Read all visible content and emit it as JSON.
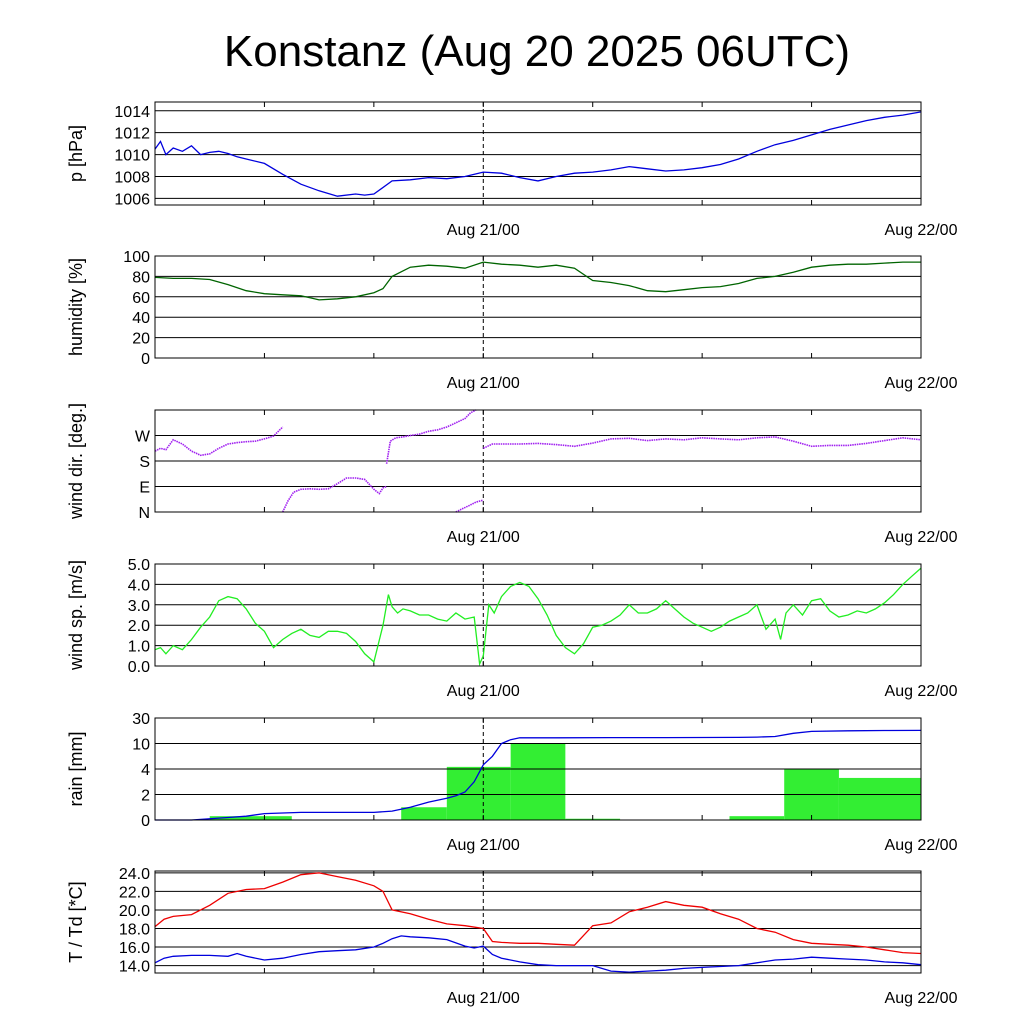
{
  "title": "Konstanz (Aug 20 2025 06UTC)",
  "colors": {
    "pressure": "#0000dd",
    "humidity": "#006400",
    "wind_dir": "#a020f0",
    "wind_speed": "#22ee22",
    "rain_bars": "#33ee33",
    "rain_cum": "#0000dd",
    "temperature": "#ee0000",
    "dewpoint": "#0000dd",
    "grid": "#000000"
  },
  "chart_data": [
    {
      "id": "pressure",
      "type": "line",
      "ylabel": "p [hPa]",
      "ylim": [
        1005.4,
        1014.8
      ],
      "yticks": [
        "1006",
        "1008",
        "1010",
        "1012",
        "1014"
      ],
      "ytick_values": [
        1006,
        1008,
        1010,
        1012,
        1014
      ],
      "xlim": [
        0,
        42
      ],
      "xticks": [
        {
          "x": 18,
          "label": "Aug 21/00"
        },
        {
          "x": 42,
          "label": "Aug 22/00"
        }
      ],
      "marker_line_x": 18,
      "series": [
        {
          "color_key": "pressure",
          "x": [
            0,
            0.3,
            0.6,
            1,
            1.5,
            2,
            2.5,
            3,
            3.5,
            4,
            4.5,
            5,
            6,
            7,
            8,
            9,
            10,
            11,
            11.5,
            12,
            13,
            14,
            15,
            16,
            17,
            18,
            19,
            20,
            21,
            22,
            23,
            24,
            25,
            26,
            27,
            28,
            29,
            30,
            31,
            32,
            33,
            34,
            35,
            36,
            37,
            38,
            39,
            40,
            41,
            42
          ],
          "y": [
            1010.5,
            1011.2,
            1010.0,
            1010.6,
            1010.3,
            1010.8,
            1010.0,
            1010.2,
            1010.3,
            1010.1,
            1009.8,
            1009.6,
            1009.2,
            1008.2,
            1007.3,
            1006.7,
            1006.2,
            1006.4,
            1006.3,
            1006.4,
            1007.6,
            1007.7,
            1007.9,
            1007.8,
            1008.0,
            1008.4,
            1008.3,
            1007.9,
            1007.6,
            1008.0,
            1008.3,
            1008.4,
            1008.6,
            1008.9,
            1008.7,
            1008.5,
            1008.6,
            1008.8,
            1009.1,
            1009.6,
            1010.3,
            1010.9,
            1011.3,
            1011.8,
            1012.3,
            1012.7,
            1013.1,
            1013.4,
            1013.6,
            1013.9
          ]
        }
      ]
    },
    {
      "id": "humidity",
      "type": "line",
      "ylabel": "humidity [%]",
      "ylim": [
        0,
        100
      ],
      "yticks": [
        "0",
        "20",
        "40",
        "60",
        "80",
        "100"
      ],
      "ytick_values": [
        0,
        20,
        40,
        60,
        80,
        100
      ],
      "xlim": [
        0,
        42
      ],
      "xticks": [
        {
          "x": 18,
          "label": "Aug 21/00"
        },
        {
          "x": 42,
          "label": "Aug 22/00"
        }
      ],
      "marker_line_x": 18,
      "series": [
        {
          "color_key": "humidity",
          "x": [
            0,
            1,
            2,
            3,
            4,
            5,
            6,
            7,
            8,
            8.5,
            9,
            10,
            11,
            12,
            12.5,
            13,
            14,
            15,
            16,
            17,
            18,
            19,
            20,
            21,
            22,
            23,
            24,
            25,
            26,
            27,
            28,
            29,
            30,
            31,
            32,
            33,
            34,
            35,
            36,
            37,
            38,
            39,
            40,
            41,
            42
          ],
          "y": [
            79,
            78,
            78,
            77,
            72,
            66,
            63,
            62,
            61,
            59,
            57,
            58,
            60,
            64,
            68,
            80,
            89,
            91,
            90,
            88,
            94,
            92,
            91,
            89,
            91,
            88,
            76,
            74,
            71,
            66,
            65,
            67,
            69,
            70,
            73,
            78,
            80,
            84,
            89,
            91,
            92,
            92,
            93,
            94,
            94
          ]
        }
      ]
    },
    {
      "id": "wind_direction",
      "type": "scatter",
      "ylabel": "wind dir. [deg.]",
      "ylim": [
        0,
        360
      ],
      "yticks": [
        "N",
        "E",
        "S",
        "W"
      ],
      "ytick_values": [
        0,
        90,
        180,
        270
      ],
      "xlim": [
        0,
        42
      ],
      "xticks": [
        {
          "x": 18,
          "label": "Aug 21/00"
        },
        {
          "x": 42,
          "label": "Aug 22/00"
        }
      ],
      "marker_line_x": 18,
      "series": [
        {
          "color_key": "wind_dir",
          "x": [
            0,
            0.3,
            0.6,
            1,
            1.5,
            2,
            2.5,
            3,
            3.5,
            4,
            4.5,
            5,
            5.5,
            6,
            6.5,
            7
          ],
          "y": [
            215,
            225,
            220,
            255,
            240,
            215,
            200,
            205,
            225,
            240,
            245,
            248,
            250,
            258,
            268,
            300
          ]
        },
        {
          "color_key": "wind_dir",
          "x": [
            7,
            7.3,
            7.6,
            8,
            8.5,
            9,
            9.5,
            10,
            10.5,
            11,
            11.5,
            12,
            12.3,
            12.5,
            12.7
          ],
          "y": [
            0,
            40,
            70,
            80,
            82,
            80,
            82,
            100,
            120,
            120,
            115,
            80,
            65,
            85,
            90
          ]
        },
        {
          "color_key": "wind_dir",
          "x": [
            12.7,
            12.9,
            13.2,
            13.6,
            14,
            14.5,
            15,
            15.5,
            16,
            16.5,
            17,
            17.3,
            17.6
          ],
          "y": [
            170,
            250,
            262,
            265,
            270,
            275,
            285,
            290,
            300,
            315,
            330,
            350,
            360
          ]
        },
        {
          "color_key": "wind_dir",
          "x": [
            16.5,
            16.8,
            17.2,
            17.6,
            18
          ],
          "y": [
            0,
            10,
            22,
            35,
            42
          ]
        },
        {
          "color_key": "wind_dir",
          "x": [
            18,
            18.5,
            19,
            20,
            21,
            22,
            23,
            24,
            25,
            26,
            27,
            28,
            29,
            30,
            31,
            32,
            33,
            34,
            35,
            36,
            37,
            38,
            39,
            40,
            41,
            42
          ],
          "y": [
            225,
            240,
            240,
            240,
            242,
            238,
            232,
            243,
            258,
            260,
            252,
            258,
            255,
            262,
            258,
            255,
            262,
            265,
            250,
            232,
            235,
            235,
            242,
            252,
            262,
            255
          ]
        }
      ]
    },
    {
      "id": "wind_speed",
      "type": "line",
      "ylabel": "wind sp. [m/s]",
      "ylim": [
        0,
        5
      ],
      "yticks": [
        "0.0",
        "1.0",
        "2.0",
        "3.0",
        "4.0",
        "5.0"
      ],
      "ytick_values": [
        0,
        1,
        2,
        3,
        4,
        5
      ],
      "xlim": [
        0,
        42
      ],
      "xticks": [
        {
          "x": 18,
          "label": "Aug 21/00"
        },
        {
          "x": 42,
          "label": "Aug 22/00"
        }
      ],
      "marker_line_x": 18,
      "series": [
        {
          "color_key": "wind_speed",
          "x": [
            0,
            0.3,
            0.6,
            1,
            1.5,
            2,
            2.5,
            3,
            3.5,
            4,
            4.5,
            5,
            5.5,
            6,
            6.5,
            7,
            7.5,
            8,
            8.5,
            9,
            9.5,
            10,
            10.5,
            11,
            11.5,
            12,
            12.5,
            12.8,
            13,
            13.3,
            13.6,
            14,
            14.5,
            15,
            15.5,
            16,
            16.5,
            17,
            17.5,
            17.8,
            18,
            18.3,
            18.6,
            19,
            19.5,
            20,
            20.5,
            21,
            21.5,
            22,
            22.5,
            23,
            23.5,
            24,
            24.5,
            25,
            25.5,
            26,
            26.5,
            27,
            27.5,
            28,
            28.5,
            29,
            29.5,
            30,
            30.5,
            31,
            31.5,
            32,
            32.5,
            33,
            33.5,
            34,
            34.3,
            34.6,
            35,
            35.5,
            36,
            36.5,
            37,
            37.5,
            38,
            38.5,
            39,
            39.5,
            40,
            40.5,
            41,
            41.5,
            42
          ],
          "y": [
            0.8,
            0.9,
            0.6,
            1.0,
            0.8,
            1.3,
            1.9,
            2.4,
            3.2,
            3.4,
            3.3,
            2.8,
            2.1,
            1.7,
            0.9,
            1.3,
            1.6,
            1.8,
            1.5,
            1.4,
            1.7,
            1.7,
            1.6,
            1.2,
            0.6,
            0.2,
            2.0,
            3.5,
            2.9,
            2.6,
            2.8,
            2.7,
            2.5,
            2.5,
            2.3,
            2.2,
            2.6,
            2.3,
            2.4,
            0.1,
            0.5,
            3.0,
            2.6,
            3.4,
            3.9,
            4.1,
            3.9,
            3.3,
            2.5,
            1.5,
            0.9,
            0.6,
            1.1,
            1.9,
            2.0,
            2.2,
            2.5,
            3.0,
            2.6,
            2.6,
            2.8,
            3.2,
            2.8,
            2.4,
            2.1,
            1.9,
            1.7,
            1.9,
            2.2,
            2.4,
            2.6,
            3.0,
            1.8,
            2.3,
            1.3,
            2.6,
            3.0,
            2.5,
            3.2,
            3.3,
            2.7,
            2.4,
            2.5,
            2.7,
            2.6,
            2.8,
            3.1,
            3.5,
            4.0,
            4.4,
            4.8
          ]
        }
      ]
    },
    {
      "id": "rain",
      "type": "bar",
      "ylabel": "rain [mm]",
      "yticks": [
        "0",
        "2",
        "4",
        "10",
        "30"
      ],
      "ytick_values": [
        0,
        2,
        4,
        10,
        30
      ],
      "ylim": [
        0,
        30
      ],
      "xlim": [
        0,
        42
      ],
      "xticks": [
        {
          "x": 18,
          "label": "Aug 21/00"
        },
        {
          "x": 42,
          "label": "Aug 22/00"
        }
      ],
      "marker_line_x": 18,
      "bars": [
        {
          "x0": 3,
          "x1": 7.5,
          "value": 0.3
        },
        {
          "x0": 13.5,
          "x1": 16,
          "value": 1.0
        },
        {
          "x0": 16,
          "x1": 19.5,
          "value": 4.5
        },
        {
          "x0": 19.5,
          "x1": 22.5,
          "value": 10.0
        },
        {
          "x0": 22.5,
          "x1": 25.5,
          "value": 0.1
        },
        {
          "x0": 31.5,
          "x1": 34.5,
          "value": 0.3
        },
        {
          "x0": 34.5,
          "x1": 37.5,
          "value": 4.0
        },
        {
          "x0": 37.5,
          "x1": 42,
          "value": 3.3
        }
      ],
      "cumulative": {
        "color_key": "rain_cum",
        "x": [
          0,
          2,
          4,
          5,
          6,
          8,
          10,
          12,
          13,
          14,
          15,
          16,
          16.5,
          17,
          17.5,
          18,
          18.5,
          19,
          19.5,
          20,
          22,
          25,
          28,
          30,
          32,
          33,
          34,
          35,
          36,
          38,
          40,
          42
        ],
        "y": [
          0,
          0,
          0.2,
          0.3,
          0.5,
          0.6,
          0.6,
          0.6,
          0.7,
          1.0,
          1.4,
          1.7,
          1.9,
          2.2,
          3.0,
          5.0,
          7.0,
          10.0,
          13.0,
          14.5,
          14.5,
          14.6,
          14.6,
          14.7,
          14.8,
          15.0,
          15.5,
          18.0,
          19.5,
          20.0,
          20.2,
          20.3
        ]
      }
    },
    {
      "id": "temperature",
      "type": "line",
      "ylabel": "T / Td [*C]",
      "ylim": [
        13.2,
        24.2
      ],
      "yticks": [
        "14.0",
        "16.0",
        "18.0",
        "20.0",
        "22.0",
        "24.0"
      ],
      "ytick_values": [
        14,
        16,
        18,
        20,
        22,
        24
      ],
      "xlim": [
        0,
        42
      ],
      "xticks": [
        {
          "x": 18,
          "label": "Aug 21/00"
        },
        {
          "x": 42,
          "label": "Aug 22/00"
        }
      ],
      "marker_line_x": 18,
      "series": [
        {
          "color_key": "temperature",
          "x": [
            0,
            0.5,
            1,
            2,
            3,
            4,
            5,
            6,
            7,
            8,
            9,
            10,
            11,
            12,
            12.5,
            13,
            14,
            15,
            16,
            17,
            18,
            18.5,
            19,
            20,
            21,
            22,
            23,
            24,
            25,
            26,
            27,
            28,
            29,
            30,
            31,
            32,
            33,
            34,
            35,
            36,
            37,
            38,
            39,
            40,
            41,
            42
          ],
          "y": [
            18.2,
            19.0,
            19.3,
            19.5,
            20.5,
            21.8,
            22.2,
            22.3,
            23.0,
            23.8,
            24.0,
            23.6,
            23.2,
            22.6,
            22.0,
            20.0,
            19.6,
            19.0,
            18.5,
            18.3,
            18.0,
            16.6,
            16.5,
            16.4,
            16.4,
            16.3,
            16.2,
            18.3,
            18.6,
            19.8,
            20.3,
            20.9,
            20.5,
            20.3,
            19.6,
            19.0,
            18.0,
            17.6,
            16.8,
            16.4,
            16.3,
            16.2,
            16.0,
            15.7,
            15.4,
            15.3
          ]
        },
        {
          "color_key": "dewpoint",
          "x": [
            0,
            0.5,
            1,
            2,
            3,
            4,
            4.5,
            5,
            6,
            7,
            8,
            9,
            10,
            11,
            12,
            12.5,
            13,
            13.5,
            14,
            15,
            16,
            17,
            17.5,
            18,
            18.5,
            19,
            20,
            21,
            22,
            23,
            24,
            25,
            26,
            27,
            28,
            29,
            30,
            31,
            32,
            33,
            34,
            35,
            36,
            37,
            38,
            39,
            40,
            41,
            42
          ],
          "y": [
            14.3,
            14.8,
            15.0,
            15.1,
            15.1,
            15.0,
            15.3,
            15.0,
            14.6,
            14.8,
            15.2,
            15.5,
            15.6,
            15.7,
            16.0,
            16.4,
            16.9,
            17.2,
            17.1,
            17.0,
            16.8,
            16.1,
            15.9,
            16.1,
            15.2,
            14.8,
            14.4,
            14.1,
            14.0,
            14.0,
            14.0,
            13.4,
            13.3,
            13.4,
            13.5,
            13.7,
            13.8,
            13.9,
            14.0,
            14.3,
            14.6,
            14.7,
            14.9,
            14.8,
            14.7,
            14.6,
            14.4,
            14.3,
            14.1
          ]
        }
      ]
    }
  ]
}
